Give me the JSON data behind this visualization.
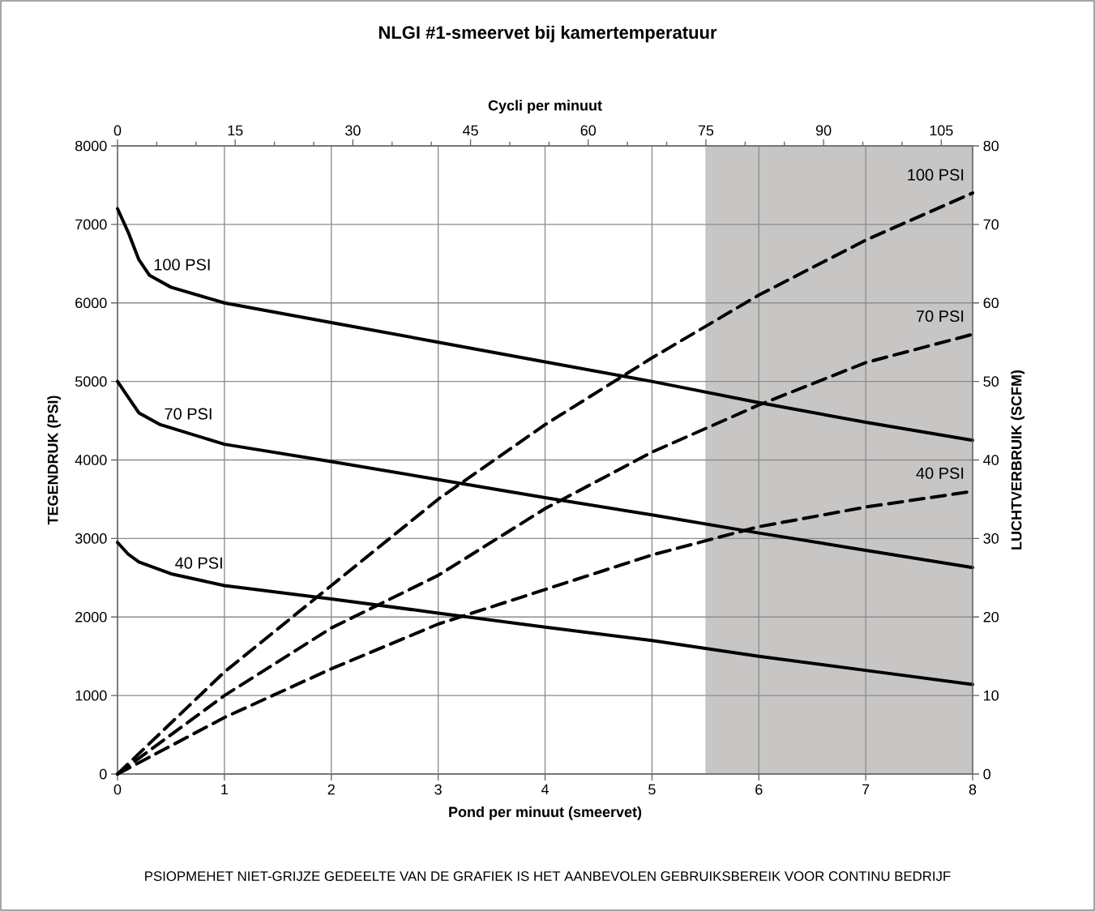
{
  "chart_data": {
    "type": "line",
    "title": "NLGI #1-smeervet bij kamertemperatuur",
    "xlabel": "Pond per minuut (smeervet)",
    "x2label": "Cycli per minuut",
    "ylabel": "TEGENDRUK (PSI)",
    "y2label": "LUCHTVERBRUIK (SCFM)",
    "xlim": [
      0,
      8
    ],
    "xticks": [
      0,
      1,
      2,
      3,
      4,
      5,
      6,
      7,
      8
    ],
    "x2lim": [
      0,
      109
    ],
    "x2ticks": [
      0,
      15,
      30,
      45,
      60,
      75,
      90,
      105
    ],
    "ylim": [
      0,
      8000
    ],
    "yticks": [
      0,
      1000,
      2000,
      3000,
      4000,
      5000,
      6000,
      7000,
      8000
    ],
    "y2lim": [
      0,
      80
    ],
    "y2ticks": [
      0,
      10,
      20,
      30,
      40,
      50,
      60,
      70,
      80
    ],
    "grid": true,
    "bands": [
      {
        "axis": "x",
        "from": 5.5,
        "to": 8,
        "color": "#c8c6c5"
      }
    ],
    "series": [
      {
        "name": "100 PSI",
        "color": "#000000",
        "line_style": "solid",
        "x": [
          0,
          0.1,
          0.2,
          0.3,
          0.5,
          1,
          2,
          3,
          4,
          5,
          6,
          7,
          8
        ],
        "values": [
          7200,
          6900,
          6550,
          6350,
          6200,
          6000,
          5750,
          5500,
          5250,
          5000,
          4730,
          4480,
          4250
        ]
      },
      {
        "name": "70 PSI",
        "color": "#000000",
        "line_style": "solid",
        "x": [
          0,
          0.1,
          0.2,
          0.4,
          1,
          2,
          3,
          4,
          5,
          6,
          7,
          8
        ],
        "values": [
          5000,
          4800,
          4600,
          4450,
          4200,
          3980,
          3750,
          3520,
          3300,
          3070,
          2850,
          2630
        ]
      },
      {
        "name": "40 PSI",
        "color": "#000000",
        "line_style": "solid",
        "x": [
          0,
          0.1,
          0.2,
          0.5,
          1,
          2,
          3,
          4,
          5,
          6,
          7,
          8
        ],
        "values": [
          2950,
          2800,
          2700,
          2550,
          2400,
          2230,
          2050,
          1870,
          1700,
          1500,
          1320,
          1140
        ]
      },
      {
        "name": "100 PSI",
        "color": "#000000",
        "line_style": "dashed",
        "axis": "y2",
        "x": [
          0,
          1,
          2,
          3,
          4,
          5,
          6,
          7,
          8
        ],
        "values": [
          0,
          13,
          24,
          35,
          44.5,
          53,
          61,
          68,
          74
        ]
      },
      {
        "name": "70 PSI",
        "color": "#000000",
        "line_style": "dashed",
        "axis": "y2",
        "x": [
          0,
          1,
          2,
          3,
          4,
          5,
          6,
          7,
          8
        ],
        "values": [
          0,
          10,
          18.6,
          25.3,
          33.8,
          41,
          47,
          52.4,
          56
        ]
      },
      {
        "name": "40 PSI",
        "color": "#000000",
        "line_style": "dashed",
        "axis": "y2",
        "x": [
          0,
          1,
          2,
          3,
          4,
          5,
          6,
          7,
          8
        ],
        "values": [
          0,
          7.2,
          13.4,
          19.1,
          23.5,
          27.9,
          31.5,
          34,
          36
        ]
      }
    ],
    "annotations": [
      "PSIOPMEHET NIET-GRIJZE GEDEELTE VAN DE GRAFIEK IS HET AANBEVOLEN GEBRUIKSBEREIK VOOR CONTINU BEDRIJF"
    ]
  }
}
